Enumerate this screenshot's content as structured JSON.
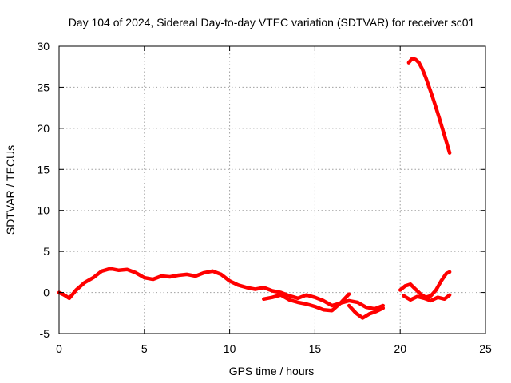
{
  "chart_data": {
    "type": "line",
    "title": "Day 104 of 2024, Sidereal Day-to-day VTEC variation (SDTVAR) for receiver sc01",
    "xlabel": "GPS time / hours",
    "ylabel": "SDTVAR / TECUs",
    "xlim": [
      0,
      25
    ],
    "ylim": [
      -5,
      30
    ],
    "xticks": [
      0,
      5,
      10,
      15,
      20,
      25
    ],
    "yticks": [
      -5,
      0,
      5,
      10,
      15,
      20,
      25,
      30
    ],
    "grid": true,
    "color": "#ff0000",
    "series": [
      {
        "name": "track-a",
        "x": [
          0.0,
          0.3,
          0.6,
          1.0,
          1.5,
          2.0,
          2.5,
          3.0,
          3.5,
          4.0,
          4.5,
          5.0,
          5.5,
          6.0,
          6.5,
          7.0,
          7.5,
          8.0,
          8.5,
          9.0,
          9.5,
          10.0,
          10.5,
          11.0,
          11.5,
          12.0,
          12.5,
          13.0,
          13.5,
          14.0,
          14.5,
          15.0,
          15.5,
          16.0,
          16.5,
          17.0,
          17.5,
          18.0,
          18.5,
          19.0
        ],
        "y": [
          0.0,
          -0.3,
          -0.7,
          0.3,
          1.2,
          1.8,
          2.6,
          2.9,
          2.7,
          2.8,
          2.4,
          1.8,
          1.6,
          2.0,
          1.9,
          2.1,
          2.2,
          2.0,
          2.4,
          2.6,
          2.2,
          1.4,
          0.9,
          0.6,
          0.4,
          0.6,
          0.2,
          0.0,
          -0.4,
          -0.7,
          -0.3,
          -0.6,
          -1.0,
          -1.6,
          -1.3,
          -1.0,
          -1.2,
          -1.8,
          -2.0,
          -1.6
        ]
      },
      {
        "name": "track-b",
        "x": [
          12.0,
          12.5,
          13.0,
          13.5,
          14.0,
          14.5,
          15.0,
          15.5,
          16.0,
          16.5,
          17.0
        ],
        "y": [
          -0.8,
          -0.6,
          -0.3,
          -0.9,
          -1.2,
          -1.4,
          -1.7,
          -2.1,
          -2.2,
          -1.3,
          -0.2
        ]
      },
      {
        "name": "track-c",
        "x": [
          17.0,
          17.4,
          17.8,
          18.2,
          18.6,
          19.0
        ],
        "y": [
          -1.6,
          -2.5,
          -3.1,
          -2.6,
          -2.3,
          -1.9
        ]
      },
      {
        "name": "track-d",
        "x": [
          20.0,
          20.3,
          20.6,
          20.9,
          21.2,
          21.5,
          21.8,
          22.1,
          22.4,
          22.7,
          22.9
        ],
        "y": [
          0.3,
          0.8,
          1.0,
          0.4,
          -0.2,
          -0.6,
          -0.4,
          0.3,
          1.4,
          2.3,
          2.5
        ]
      },
      {
        "name": "track-e",
        "x": [
          20.2,
          20.6,
          21.0,
          21.4,
          21.8,
          22.2,
          22.6,
          22.9
        ],
        "y": [
          -0.4,
          -0.9,
          -0.5,
          -0.7,
          -1.0,
          -0.6,
          -0.8,
          -0.3
        ]
      },
      {
        "name": "track-f",
        "x": [
          20.5,
          20.7,
          20.9,
          21.1,
          21.3,
          21.5,
          21.7,
          21.9,
          22.1,
          22.3,
          22.5,
          22.7,
          22.9
        ],
        "y": [
          28.0,
          28.5,
          28.4,
          28.0,
          27.2,
          26.2,
          25.0,
          23.8,
          22.5,
          21.2,
          19.8,
          18.4,
          17.0
        ]
      }
    ]
  }
}
